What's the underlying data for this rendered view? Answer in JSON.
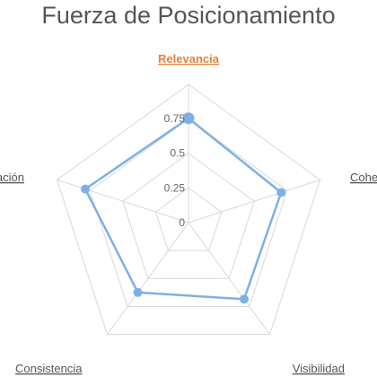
{
  "chart_data": {
    "type": "radar",
    "title": "Fuerza de Posicionamiento",
    "axes": [
      "Relevancia",
      "Coherencia",
      "Visibilidad",
      "Consistencia",
      "Diferenciación"
    ],
    "highlighted_axis": "Relevancia",
    "series": [
      {
        "values": [
          0.75,
          0.7,
          0.68,
          0.62,
          0.78
        ]
      }
    ],
    "rlim": [
      0,
      1
    ],
    "ticks": [
      0,
      0.25,
      0.5,
      0.75
    ],
    "tick_labels": [
      "0",
      "0.25",
      "0.5",
      "0.75"
    ],
    "grid": true,
    "legend": false,
    "colors": {
      "series": "#7cb1e6",
      "grid": "#d9d9d9",
      "highlight_label": "#e8813a",
      "label": "#555555"
    }
  }
}
